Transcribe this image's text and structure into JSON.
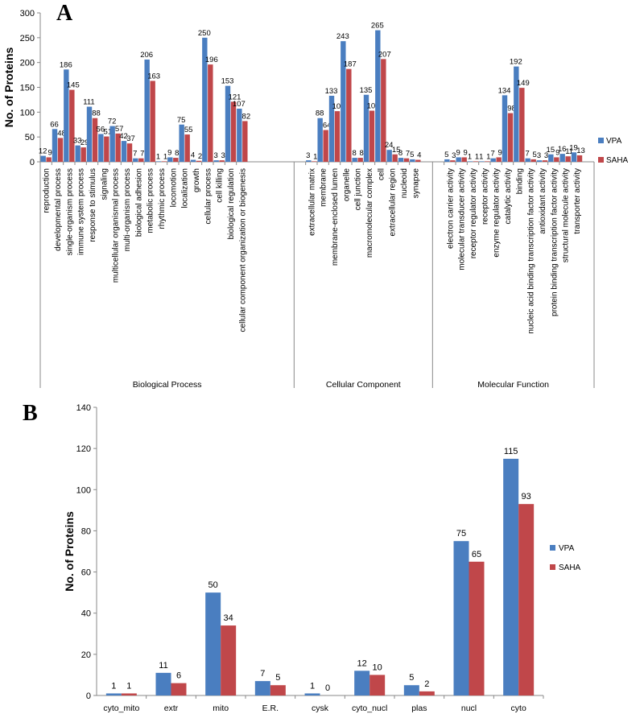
{
  "colors": {
    "vpa": "#4a7ec0",
    "saha": "#c0474a",
    "axis": "#888888"
  },
  "chart_data": [
    {
      "type": "bar",
      "panel": "A",
      "ylabel": "No. of Proteins",
      "ylim": [
        0,
        300
      ],
      "yticks": [
        0,
        50,
        100,
        150,
        200,
        250,
        300
      ],
      "legend_position": "right",
      "groups": [
        {
          "name": "Biological Process",
          "start": 0,
          "end": 22
        },
        {
          "name": "Cellular Component",
          "start": 22,
          "end": 34
        },
        {
          "name": "Molecular Function",
          "start": 34,
          "end": 48
        }
      ],
      "categories": [
        "reproduction",
        "developmental process",
        "single-organism process",
        "immune system process",
        "response to stimulus",
        "signaling",
        "multicellular organismal process",
        "multi-organism process",
        "biological adhesion",
        "metabolic process",
        "rhythmic process",
        "locomotion",
        "localization",
        "growth",
        "cellular process",
        "cell killing",
        "biological regulation",
        "cellular component organization or biogenesis",
        "extracellular matrix",
        "membrane",
        "membrane-enclosed lumen",
        "organelle",
        "cell junction",
        "macromolecular complex",
        "cell",
        "extracellular region",
        "nucleoid",
        "synapse",
        "electron carrier activity",
        "molecular transducer activity",
        "receptor regulator activity",
        "receptor activity",
        "enzyme regulator activity",
        "catalytic activity",
        "binding",
        "nucleic acid binding transcription factor activity",
        "antioxidant activity",
        "protein binding transcription factor activity",
        "structural molecule activity",
        "transporter activity"
      ],
      "slots": [
        0,
        1,
        2,
        3,
        4,
        5,
        6,
        7,
        8,
        9,
        10,
        11,
        12,
        13,
        14,
        15,
        16,
        17,
        23,
        24,
        25,
        26,
        27,
        28,
        29,
        30,
        31,
        32,
        35,
        36,
        37,
        38,
        39,
        40,
        41,
        42,
        43,
        44,
        45,
        46
      ],
      "series": [
        {
          "name": "VPA",
          "values": [
            12,
            66,
            186,
            33,
            111,
            56,
            72,
            42,
            7,
            206,
            1,
            9,
            75,
            4,
            250,
            3,
            153,
            107,
            3,
            88,
            133,
            243,
            8,
            135,
            265,
            24,
            8,
            5,
            5,
            9,
            1,
            1,
            7,
            134,
            192,
            7,
            3,
            15,
            16,
            19
          ]
        },
        {
          "name": "SAHA",
          "values": [
            9,
            48,
            145,
            29,
            88,
            51,
            57,
            37,
            7,
            163,
            1,
            8,
            55,
            2,
            196,
            3,
            121,
            82,
            1,
            64,
            102,
            187,
            8,
            103,
            207,
            15,
            7,
            4,
            3,
            9,
            1,
            1,
            9,
            98,
            149,
            5,
            3,
            9,
            11,
            13
          ]
        }
      ],
      "value_labels": {
        "VPA": [
          "12",
          "66",
          "186",
          "33",
          "111",
          "56",
          "72",
          "42",
          "7",
          "206",
          "1",
          "9",
          "75",
          "4",
          "250",
          "3",
          "153",
          "107",
          "3",
          "88",
          "133",
          "243",
          "8",
          "135",
          "265",
          "24",
          "8",
          "5",
          "5",
          "9",
          "1",
          "1",
          "7",
          "134",
          "192",
          "7",
          "3",
          "15",
          "16",
          "19"
        ],
        "SAHA": [
          "9",
          "48",
          "145",
          "29",
          "88",
          "51",
          "57",
          "37",
          "7",
          "163",
          "1",
          "8",
          "55",
          "2",
          "196",
          "3",
          "121",
          "82",
          "1",
          "64",
          "102",
          "187",
          "8",
          "103",
          "207",
          "15",
          "7",
          "4",
          "3",
          "9",
          "1",
          "1",
          "9",
          "98",
          "149",
          "5",
          "3",
          "9",
          "11",
          "13"
        ]
      }
    },
    {
      "type": "bar",
      "panel": "B",
      "ylabel": "No. of Proteins",
      "ylim": [
        0,
        140
      ],
      "yticks": [
        0,
        20,
        40,
        60,
        80,
        100,
        120,
        140
      ],
      "legend_position": "right",
      "categories": [
        "cyto_mito",
        "extr",
        "mito",
        "E.R.",
        "cysk",
        "cyto_nucl",
        "plas",
        "nucl",
        "cyto"
      ],
      "series": [
        {
          "name": "VPA",
          "values": [
            1,
            11,
            50,
            7,
            1,
            12,
            5,
            75,
            115
          ]
        },
        {
          "name": "SAHA",
          "values": [
            1,
            6,
            34,
            5,
            0,
            10,
            2,
            65,
            93
          ]
        }
      ]
    }
  ]
}
